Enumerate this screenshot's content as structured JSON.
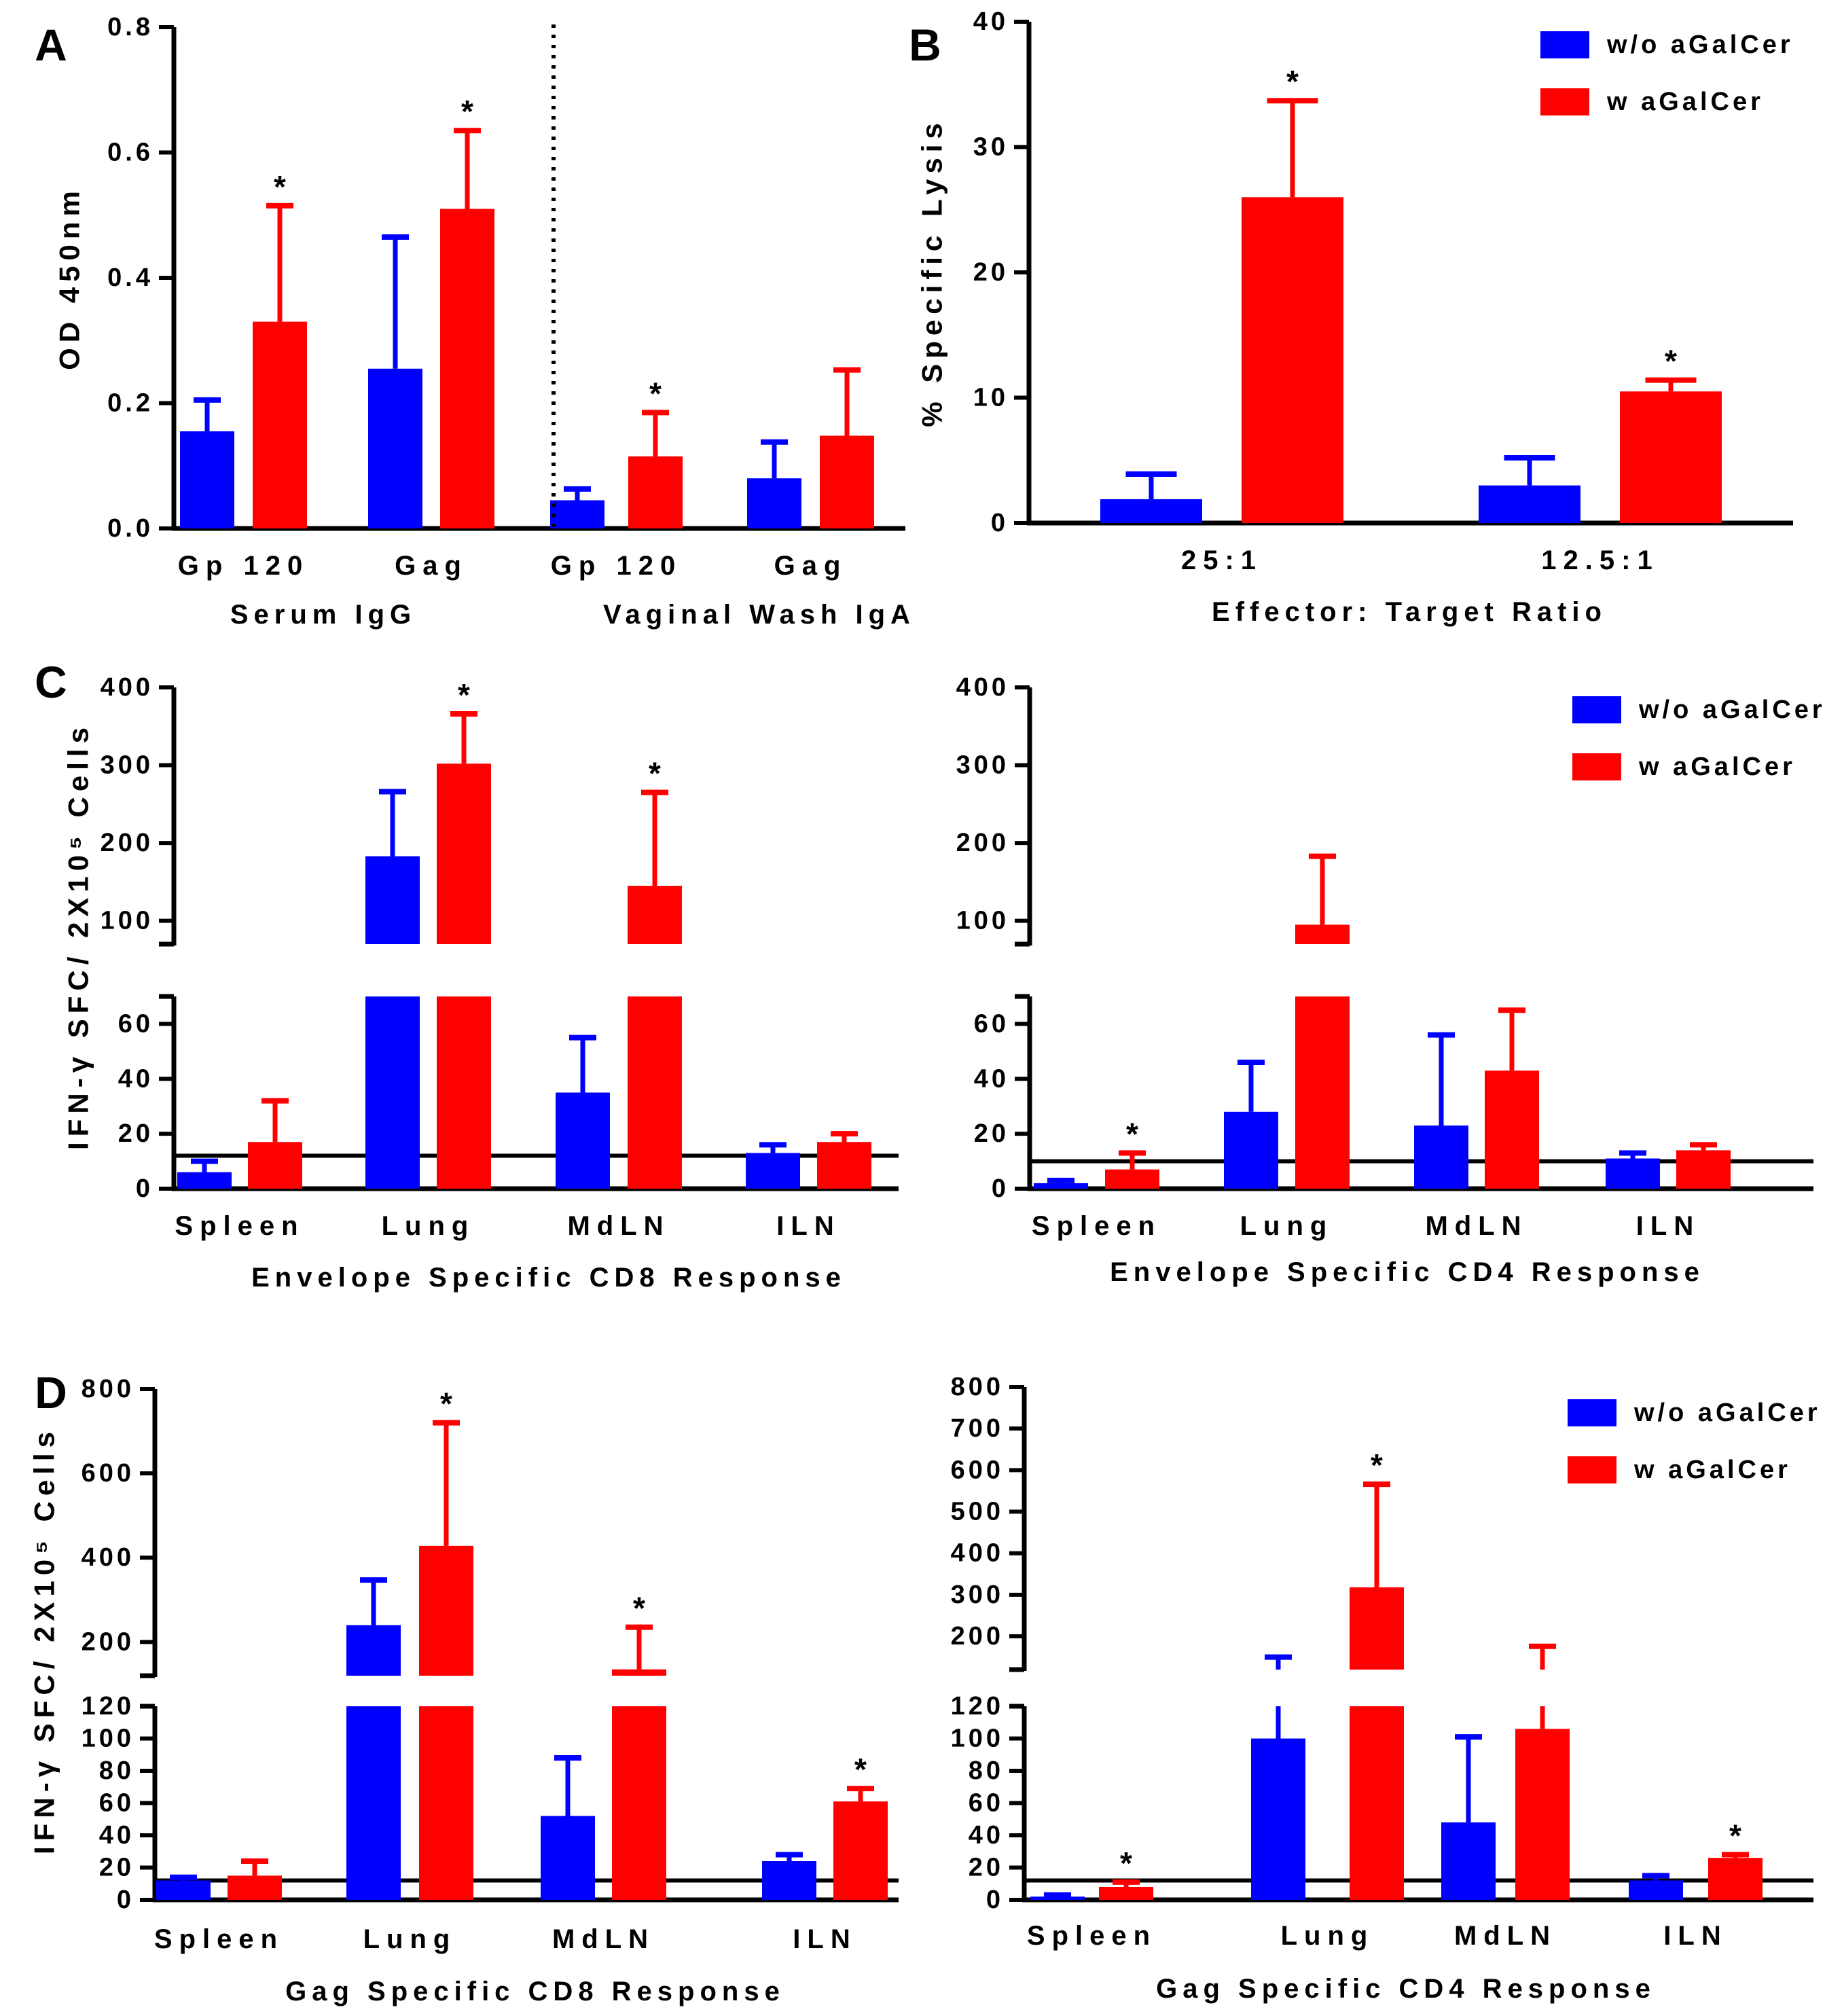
{
  "colors": {
    "without": "#0000ff",
    "with": "#ff0000",
    "axis": "#000000"
  },
  "legend": {
    "without_label": "w/o aGalCer",
    "with_label": "w aGalCer"
  },
  "chart_data": [
    {
      "id": "A",
      "type": "bar",
      "panel_label": "A",
      "ylabel": "OD 450nm",
      "ylim": [
        0,
        0.8
      ],
      "yticks": [
        0,
        0.2,
        0.4,
        0.6,
        0.8
      ],
      "ytick_labels": [
        "0.0",
        "0.2",
        "0.4",
        "0.6",
        "0.8"
      ],
      "categories": [
        "Gp 120",
        "Gag",
        "Gp 120",
        "Gag"
      ],
      "groups": [
        "Serum IgG",
        "Vaginal Wash IgA"
      ],
      "series": [
        {
          "name": "w/o aGalCer",
          "values": [
            0.155,
            0.255,
            0.045,
            0.08
          ],
          "errors": [
            0.05,
            0.21,
            0.018,
            0.058
          ],
          "sig": [
            false,
            false,
            false,
            false
          ]
        },
        {
          "name": "w aGalCer",
          "values": [
            0.33,
            0.51,
            0.115,
            0.148
          ],
          "errors": [
            0.185,
            0.125,
            0.07,
            0.105
          ],
          "sig": [
            true,
            true,
            true,
            false
          ]
        }
      ]
    },
    {
      "id": "B",
      "type": "bar",
      "panel_label": "B",
      "ylabel": "% Specific Lysis",
      "xlabel": "Effector: Target Ratio",
      "ylim": [
        0,
        40
      ],
      "yticks": [
        0,
        10,
        20,
        30,
        40
      ],
      "ytick_labels": [
        "0",
        "10",
        "20",
        "30",
        "40"
      ],
      "categories": [
        "25:1",
        "12.5:1"
      ],
      "legend": true,
      "series": [
        {
          "name": "w/o aGalCer",
          "values": [
            1.9,
            3.0
          ],
          "errors": [
            2.0,
            2.2
          ],
          "sig": [
            false,
            false
          ]
        },
        {
          "name": "w aGalCer",
          "values": [
            26.0,
            10.5
          ],
          "errors": [
            7.7,
            0.9
          ],
          "sig": [
            true,
            true
          ]
        }
      ]
    },
    {
      "id": "C1",
      "type": "bar",
      "panel_label": "C",
      "ylabel": "IFN-γ SFC/ 2X10⁵ Cells",
      "xlabel": "Envelope Specific CD8 Response",
      "ylim_lower": [
        0,
        70
      ],
      "ylim_upper": [
        70,
        400
      ],
      "yticks_lower": [
        0,
        20,
        40,
        60
      ],
      "ytick_labels_lower": [
        "0",
        "20",
        "40",
        "60"
      ],
      "yticks_upper": [
        100,
        200,
        300,
        400
      ],
      "ytick_labels_upper": [
        "100",
        "200",
        "300",
        "400"
      ],
      "threshold": 12,
      "categories": [
        "Spleen",
        "Lung",
        "MdLN",
        "ILN"
      ],
      "series": [
        {
          "name": "w/o aGalCer",
          "values": [
            6,
            183,
            35,
            13
          ],
          "errors": [
            4,
            83,
            20,
            3
          ],
          "sig": [
            false,
            false,
            false,
            false
          ]
        },
        {
          "name": "w aGalCer",
          "values": [
            17,
            302,
            145,
            17
          ],
          "errors": [
            15,
            64,
            120,
            3
          ],
          "sig": [
            false,
            true,
            true,
            false
          ]
        }
      ]
    },
    {
      "id": "C2",
      "type": "bar",
      "panel_label": "",
      "xlabel": "Envelope Specific CD4 Response",
      "ylim_lower": [
        0,
        70
      ],
      "ylim_upper": [
        70,
        400
      ],
      "yticks_lower": [
        0,
        20,
        40,
        60
      ],
      "ytick_labels_lower": [
        "0",
        "20",
        "40",
        "60"
      ],
      "yticks_upper": [
        100,
        200,
        300,
        400
      ],
      "ytick_labels_upper": [
        "100",
        "200",
        "300",
        "400"
      ],
      "threshold": 10,
      "legend": true,
      "categories": [
        "Spleen",
        "Lung",
        "MdLN",
        "ILN"
      ],
      "series": [
        {
          "name": "w/o aGalCer",
          "values": [
            2,
            28,
            23,
            11
          ],
          "errors": [
            1,
            18,
            33,
            2
          ],
          "sig": [
            false,
            false,
            false,
            false
          ]
        },
        {
          "name": "w aGalCer",
          "values": [
            7,
            95,
            43,
            14
          ],
          "errors": [
            6,
            88,
            22,
            2
          ],
          "sig": [
            true,
            false,
            false,
            false
          ]
        }
      ]
    },
    {
      "id": "D1",
      "type": "bar",
      "panel_label": "D",
      "ylabel": "IFN-γ SFC/ 2X10⁵ Cells",
      "xlabel": "Gag Specific CD8 Response",
      "ylim_lower": [
        0,
        120
      ],
      "ylim_upper": [
        120,
        800
      ],
      "yticks_lower": [
        0,
        20,
        40,
        60,
        80,
        100,
        120
      ],
      "ytick_labels_lower": [
        "0",
        "20",
        "40",
        "60",
        "80",
        "100",
        "120"
      ],
      "yticks_upper": [
        200,
        400,
        600,
        800
      ],
      "ytick_labels_upper": [
        "200",
        "400",
        "600",
        "800"
      ],
      "threshold": 12,
      "categories": [
        "Spleen",
        "Lung",
        "MdLN",
        "ILN"
      ],
      "series": [
        {
          "name": "w/o aGalCer",
          "values": [
            12,
            240,
            52,
            24
          ],
          "errors": [
            2,
            107,
            36,
            4
          ],
          "sig": [
            false,
            false,
            false,
            false
          ]
        },
        {
          "name": "w aGalCer",
          "values": [
            15,
            428,
            135,
            61
          ],
          "errors": [
            9,
            292,
            100,
            8
          ],
          "sig": [
            false,
            true,
            true,
            true
          ]
        }
      ]
    },
    {
      "id": "D2",
      "type": "bar",
      "panel_label": "",
      "xlabel": "Gag Specific CD4 Response",
      "ylim_lower": [
        0,
        120
      ],
      "ylim_upper": [
        120,
        800
      ],
      "yticks_lower": [
        0,
        20,
        40,
        60,
        80,
        100,
        120
      ],
      "ytick_labels_lower": [
        "0",
        "20",
        "40",
        "60",
        "80",
        "100",
        "120"
      ],
      "yticks_upper": [
        200,
        300,
        400,
        500,
        600,
        700,
        800
      ],
      "ytick_labels_upper": [
        "200",
        "300",
        "400",
        "500",
        "600",
        "700",
        "800"
      ],
      "threshold": 12,
      "legend": true,
      "categories": [
        "Spleen",
        "Lung",
        "MdLN",
        "ILN"
      ],
      "series": [
        {
          "name": "w/o aGalCer",
          "values": [
            2,
            100,
            48,
            12
          ],
          "errors": [
            1,
            50,
            53,
            3
          ],
          "sig": [
            false,
            false,
            false,
            false
          ]
        },
        {
          "name": "w aGalCer",
          "values": [
            8,
            318,
            106,
            26
          ],
          "errors": [
            3,
            248,
            70,
            2
          ],
          "sig": [
            true,
            true,
            false,
            true
          ]
        }
      ]
    }
  ]
}
